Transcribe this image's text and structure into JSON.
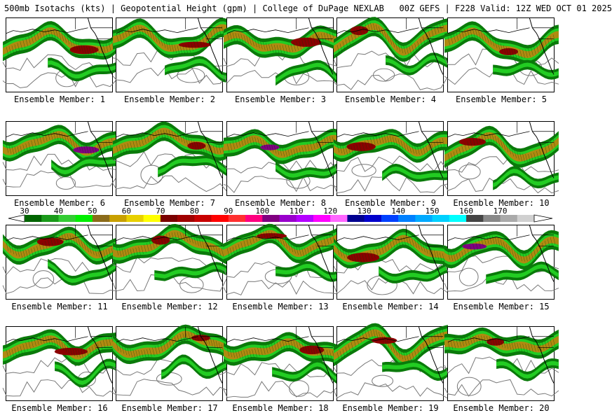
{
  "header": {
    "title": "500mb Isotachs (kts) | Geopotential Height (gpm) | College of DuPage NEXLAB   00Z GEFS | F228 Valid: 12Z WED OCT 01 2025"
  },
  "members": [
    {
      "label": "Ensemble Member: 1",
      "seed": 11
    },
    {
      "label": "Ensemble Member: 2",
      "seed": 27
    },
    {
      "label": "Ensemble Member: 3",
      "seed": 39
    },
    {
      "label": "Ensemble Member: 4",
      "seed": 44
    },
    {
      "label": "Ensemble Member: 5",
      "seed": 58
    },
    {
      "label": "Ensemble Member: 6",
      "seed": 63
    },
    {
      "label": "Ensemble Member: 7",
      "seed": 71
    },
    {
      "label": "Ensemble Member: 8",
      "seed": 85
    },
    {
      "label": "Ensemble Member: 9",
      "seed": 92
    },
    {
      "label": "Ensemble Member: 10",
      "seed": 104
    },
    {
      "label": "Ensemble Member: 11",
      "seed": 117
    },
    {
      "label": "Ensemble Member: 12",
      "seed": 125
    },
    {
      "label": "Ensemble Member: 13",
      "seed": 133
    },
    {
      "label": "Ensemble Member: 14",
      "seed": 148
    },
    {
      "label": "Ensemble Member: 15",
      "seed": 156
    },
    {
      "label": "Ensemble Member: 16",
      "seed": 162
    },
    {
      "label": "Ensemble Member: 17",
      "seed": 179
    },
    {
      "label": "Ensemble Member: 18",
      "seed": 183
    },
    {
      "label": "Ensemble Member: 19",
      "seed": 197
    },
    {
      "label": "Ensemble Member: 20",
      "seed": 205
    }
  ],
  "colorbar": {
    "labels": [
      "30",
      "40",
      "50",
      "60",
      "70",
      "80",
      "90",
      "100",
      "110",
      "120",
      "130",
      "140",
      "150",
      "160",
      "170"
    ],
    "colors": [
      "#006400",
      "#1a9a1a",
      "#33cc33",
      "#00ee00",
      "#8b6b1a",
      "#c8a000",
      "#e8d000",
      "#ffff00",
      "#7a0000",
      "#a00000",
      "#c80000",
      "#ff0000",
      "#ff3030",
      "#ff0080",
      "#800080",
      "#9900cc",
      "#b400ff",
      "#ff00ff",
      "#ff66ff",
      "#000090",
      "#0000cc",
      "#0040ff",
      "#0080ff",
      "#00aaff",
      "#00d0ff",
      "#00ffff",
      "#444444",
      "#888888",
      "#aaaaaa",
      "#d0d0d0"
    ]
  },
  "palette": {
    "weak": "#0a7a0a",
    "mid": "#22cc22",
    "core": "#b08a10",
    "jet": "#c8b000",
    "max": "#8b0000",
    "extreme": "#800080"
  }
}
